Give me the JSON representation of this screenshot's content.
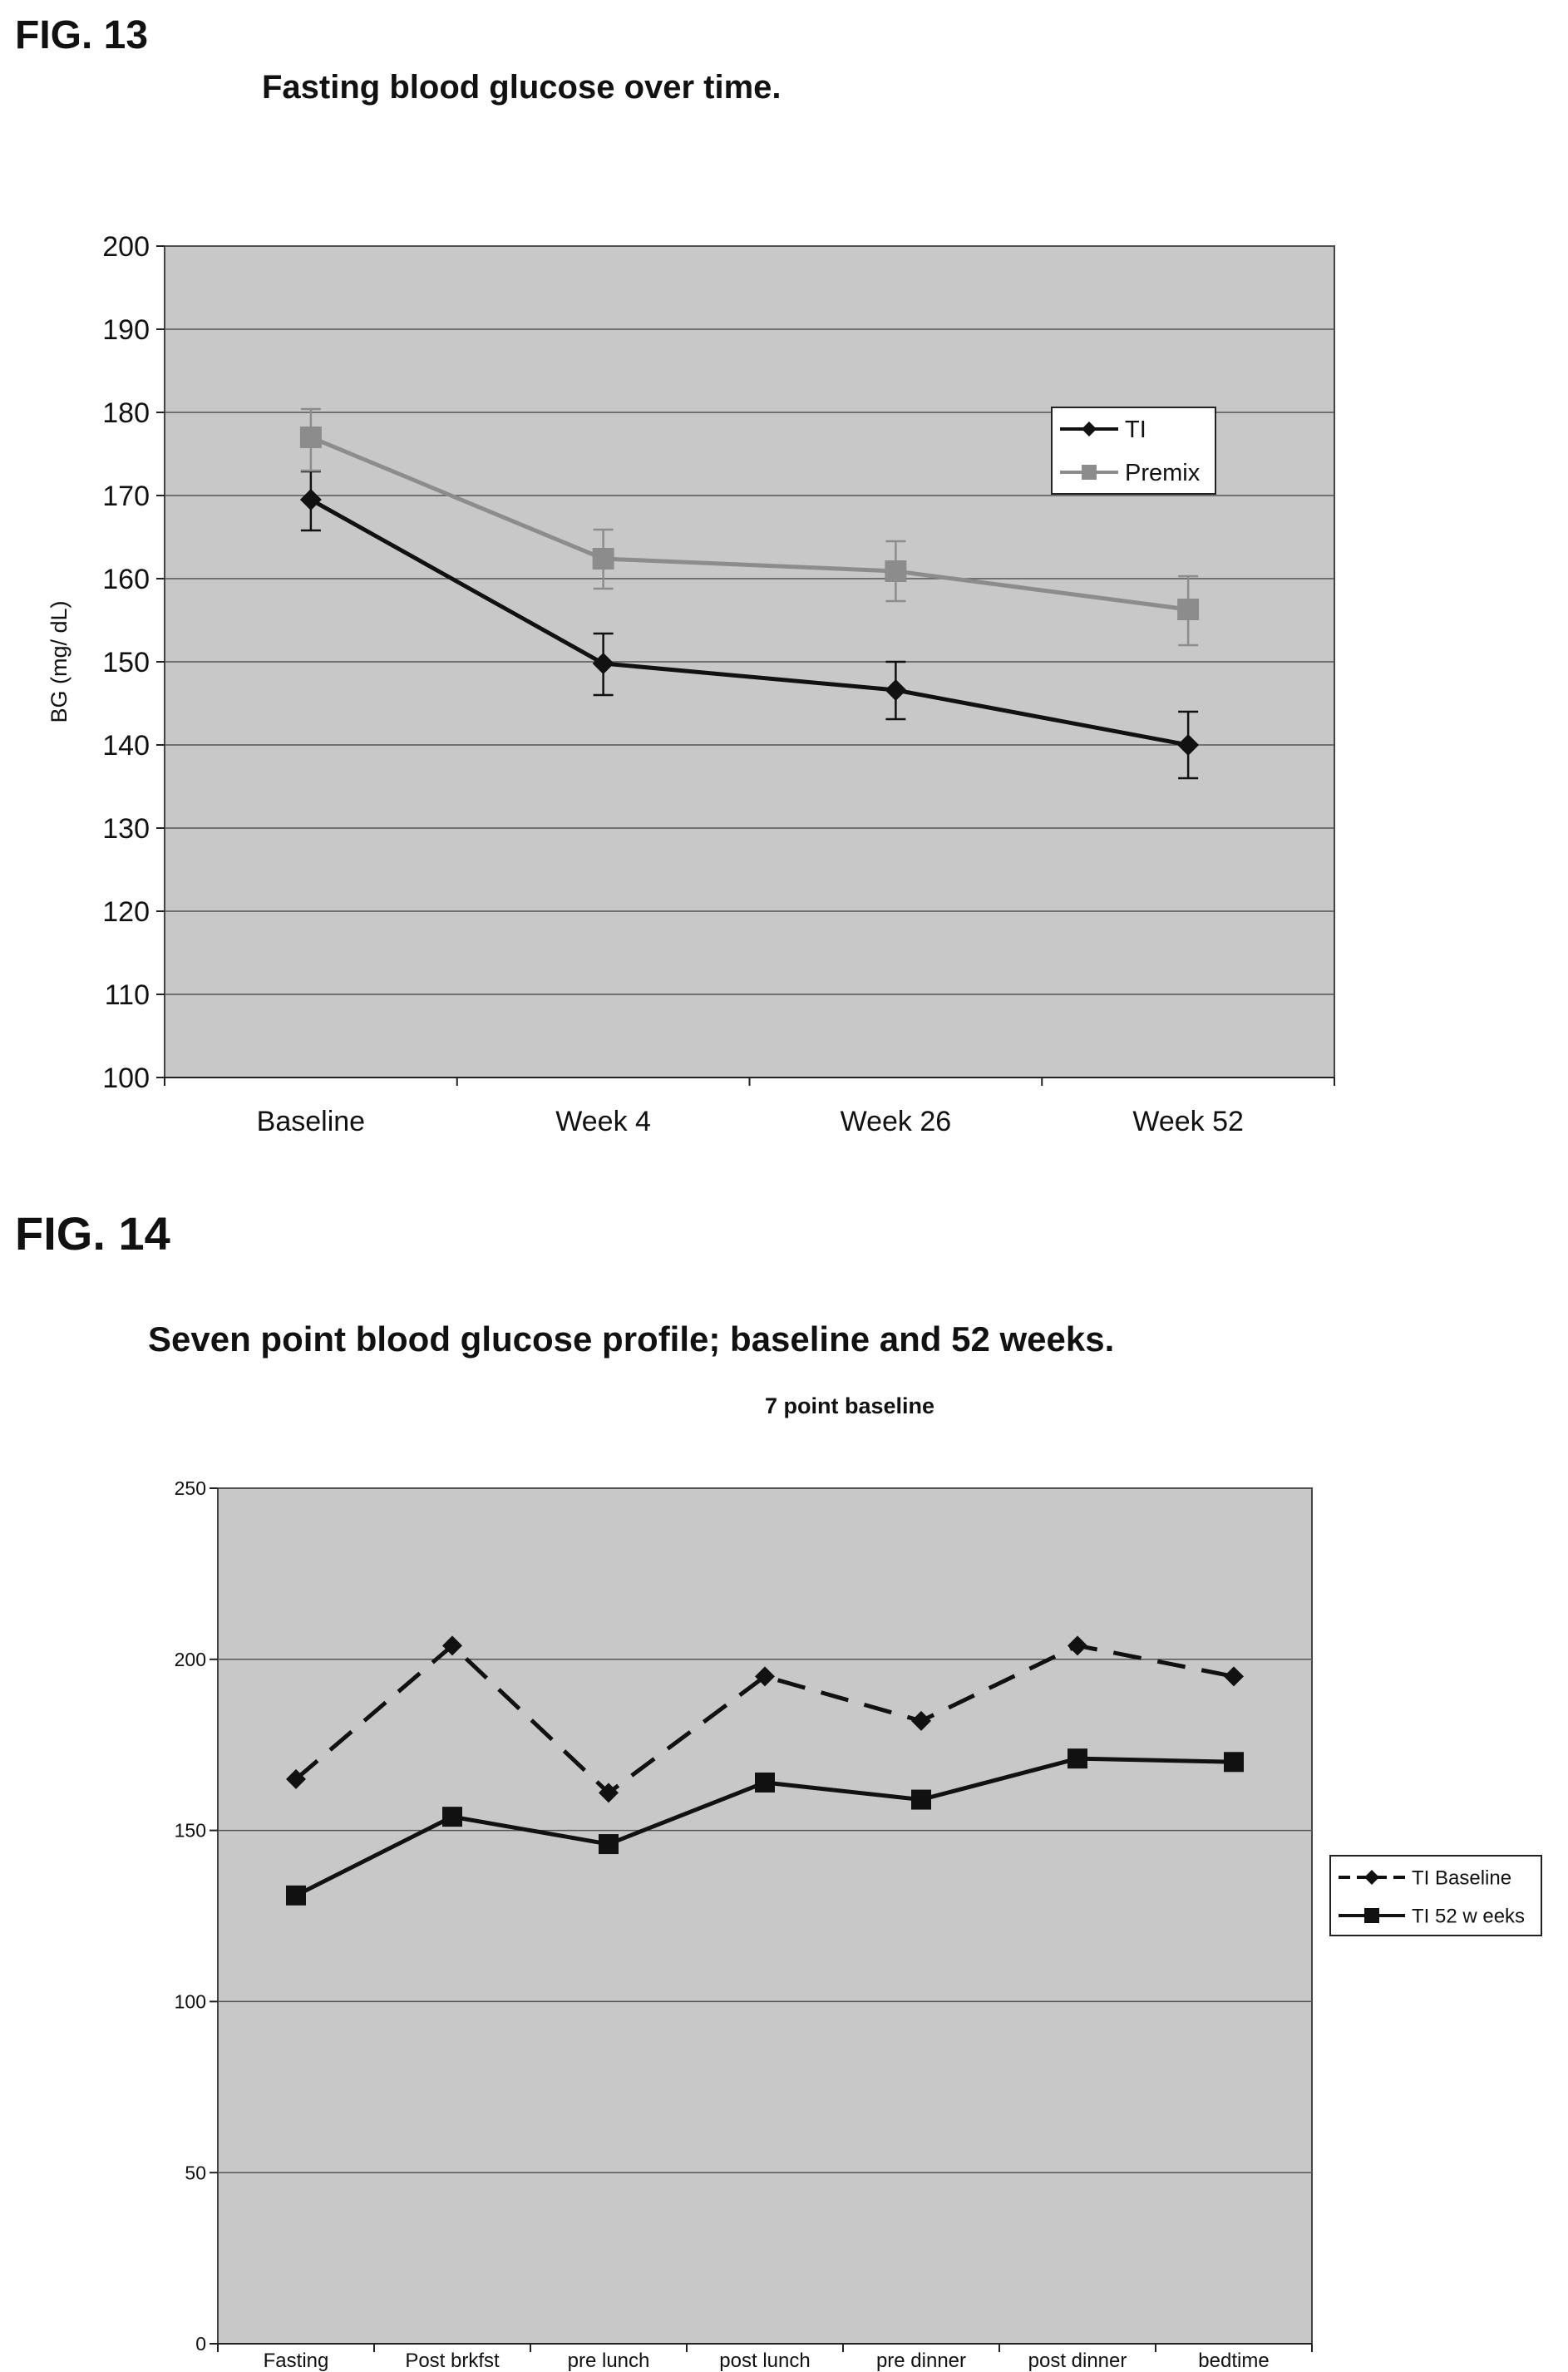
{
  "figures": [
    {
      "label": "FIG. 13",
      "title": "Fasting blood glucose over time."
    },
    {
      "label": "FIG. 14",
      "title": "Seven point blood glucose profile; baseline and 52 weeks."
    }
  ],
  "colors": {
    "plot_bg": "#c8c8c8",
    "gridline": "#555555",
    "series_dark": "#111111",
    "series_gray": "#8c8c8c"
  },
  "chart_data": [
    {
      "type": "line",
      "title": "",
      "xlabel": "",
      "ylabel": "BG (mg/ dL)",
      "categories": [
        "Baseline",
        "Week 4",
        "Week 26",
        "Week 52"
      ],
      "ylim": [
        100,
        200
      ],
      "yticks": [
        100,
        110,
        120,
        130,
        140,
        150,
        160,
        170,
        180,
        190,
        200
      ],
      "grid": true,
      "legend_position": "top-right",
      "series": [
        {
          "name": "TI",
          "values": [
            169.5,
            149.8,
            146.6,
            140.0
          ],
          "error_low": [
            165.8,
            146.0,
            143.1,
            136.0
          ],
          "error_high": [
            172.9,
            153.4,
            150.0,
            144.0
          ],
          "marker": "diamond",
          "color": "#111111",
          "dashed": false
        },
        {
          "name": "Premix",
          "values": [
            177.0,
            162.4,
            160.9,
            156.3
          ],
          "error_low": [
            173.0,
            158.8,
            157.3,
            152.0
          ],
          "error_high": [
            180.4,
            165.9,
            164.5,
            160.3
          ],
          "marker": "square",
          "color": "#8c8c8c",
          "dashed": false
        }
      ]
    },
    {
      "type": "line",
      "title": "7 point baseline",
      "xlabel": "",
      "ylabel": "",
      "categories": [
        "Fasting",
        "Post brkfst",
        "pre lunch",
        "post lunch",
        "pre dinner",
        "post dinner",
        "bedtime"
      ],
      "ylim": [
        0,
        250
      ],
      "yticks": [
        0,
        50,
        100,
        150,
        200,
        250
      ],
      "grid": true,
      "legend_position": "right",
      "series": [
        {
          "name": "TI Baseline",
          "values": [
            165,
            204,
            161,
            195,
            182,
            204,
            195
          ],
          "marker": "diamond",
          "color": "#111111",
          "dashed": true
        },
        {
          "name": "TI 52 w eeks",
          "values": [
            131,
            154,
            146,
            164,
            159,
            171,
            170
          ],
          "marker": "square",
          "color": "#111111",
          "dashed": false
        }
      ]
    }
  ]
}
